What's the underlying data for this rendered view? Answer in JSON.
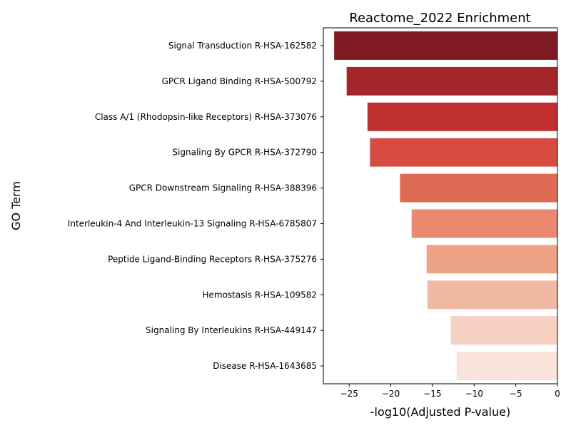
{
  "chart_data": {
    "type": "bar",
    "orientation": "horizontal",
    "title": "Reactome_2022 Enrichment",
    "xlabel": "-log10(Adjusted P-value)",
    "ylabel": "GO Term",
    "xlim": [
      -28.1,
      0
    ],
    "x_ticks": [
      -25,
      -20,
      -15,
      -10,
      -5,
      0
    ],
    "x_tick_labels": [
      "−25",
      "−20",
      "−15",
      "−10",
      "−5",
      "0"
    ],
    "grid": false,
    "legend": "none",
    "categories": [
      "Signal Transduction R-HSA-162582",
      "GPCR Ligand Binding R-HSA-500792",
      "Class A/1 (Rhodopsin-like Receptors) R-HSA-373076",
      "Signaling By GPCR R-HSA-372790",
      "GPCR Downstream Signaling R-HSA-388396",
      "Interleukin-4 And Interleukin-13 Signaling R-HSA-6785807",
      "Peptide Ligand-Binding Receptors R-HSA-375276",
      "Hemostasis R-HSA-109582",
      "Signaling By Interleukins R-HSA-449147",
      "Disease R-HSA-1643685"
    ],
    "values": [
      -26.8,
      -25.3,
      -22.8,
      -22.5,
      -18.9,
      -17.5,
      -15.7,
      -15.6,
      -12.8,
      -12.1
    ],
    "colors": [
      "#7f1a23",
      "#a3262b",
      "#bf2f2f",
      "#d64c41",
      "#e06b55",
      "#ea896f",
      "#eda185",
      "#f1b8a3",
      "#f6d1c2",
      "#f9e3db"
    ]
  }
}
